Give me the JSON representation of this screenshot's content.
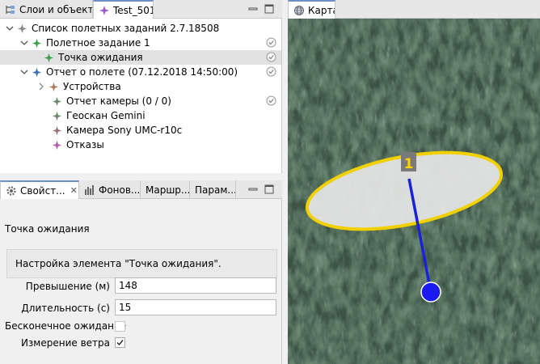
{
  "left_tabs": [
    {
      "label": "Слои и объекты",
      "icon": "layers-tree-icon"
    },
    {
      "label": "Test_501",
      "icon": "mission-icon"
    }
  ],
  "tree": {
    "items": [
      {
        "label": "Список полетных заданий 2.7.18508",
        "icon": "mission-list-icon",
        "icon_color": "#8a8a8a",
        "expanded": true,
        "checked": false
      },
      {
        "label": "Полетное задание 1",
        "icon": "flight-task-icon",
        "icon_color": "#3a9e4b",
        "expanded": true,
        "checked": true
      },
      {
        "label": "Точка ожидания",
        "icon": "waypoint-icon",
        "icon_color": "#3a9e4b",
        "selected": true,
        "checked": true
      },
      {
        "label": "Отчет о полете (07.12.2018 14:50:00)",
        "icon": "flight-report-icon",
        "icon_color": "#3b6fb5",
        "expanded": true,
        "checked": true
      },
      {
        "label": "Устройства",
        "icon": "devices-icon",
        "icon_color": "#b07a5a",
        "collapsed": true,
        "checked": false
      },
      {
        "label": "Отчет камеры (0 / 0)",
        "icon": "camera-report-icon",
        "icon_color": "#6a8a6a",
        "checked": true
      },
      {
        "label": "Геоскан Gemini",
        "icon": "drone-icon",
        "icon_color": "#6a8a6a",
        "checked": false
      },
      {
        "label": "Камера Sony UMC-r10c",
        "icon": "camera-icon",
        "icon_color": "#a07070",
        "checked": false
      },
      {
        "label": "Отказы",
        "icon": "failures-icon",
        "icon_color": "#b05ab0",
        "checked": false
      }
    ]
  },
  "props_tabs": [
    {
      "label": "Свойст...",
      "icon": "gear-icon"
    },
    {
      "label": "Фонов...",
      "icon": "chart-icon"
    },
    {
      "label": "Маршр...",
      "icon": ""
    },
    {
      "label": "Парам...",
      "icon": ""
    }
  ],
  "props": {
    "title": "Точка ожидания",
    "description": "Настройка элемента \"Точка ожидания\".",
    "altitude_label": "Превышение (м)",
    "altitude_value": "148",
    "duration_label": "Длительность (с)",
    "duration_value": "15",
    "infinite_label": "Бесконечное ожидание",
    "infinite_checked": false,
    "wind_label": "Измерение ветра",
    "wind_checked": true
  },
  "map": {
    "tab_label": "Карта",
    "tab_icon": "globe-icon",
    "waypoint_number": "1",
    "colors": {
      "ellipse_stroke": "#f0d000",
      "ellipse_fill": "#e6e6e6",
      "line": "#1a22d8",
      "marker": "#1a1aee",
      "label_bg": "#7a7a7a",
      "label_text": "#ffd400"
    }
  }
}
